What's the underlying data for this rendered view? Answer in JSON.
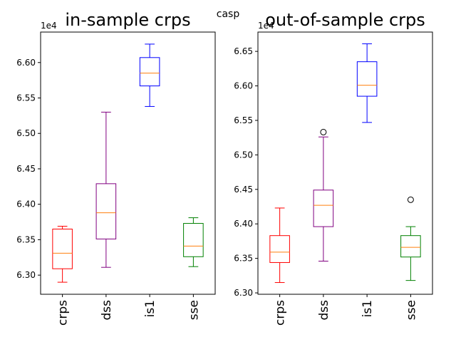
{
  "suptitle": "casp",
  "chart_data": [
    {
      "type": "box",
      "title": "in-sample crps",
      "offset_label": "1e4",
      "categories": [
        "crps",
        "dss",
        "is1",
        "sse"
      ],
      "colors": [
        "#ff0000",
        "#800080",
        "#0000ff",
        "#008000"
      ],
      "median_color": "#ff7f0e",
      "ylim": [
        6.273,
        6.643
      ],
      "yticks": [
        6.3,
        6.35,
        6.4,
        6.45,
        6.5,
        6.55,
        6.6
      ],
      "ytick_labels": [
        "6.30",
        "6.35",
        "6.40",
        "6.45",
        "6.50",
        "6.55",
        "6.60"
      ],
      "boxes": [
        {
          "name": "crps",
          "whislo": 6.29,
          "q1": 6.309,
          "med": 6.331,
          "q3": 6.365,
          "whishi": 6.369,
          "fliers": []
        },
        {
          "name": "dss",
          "whislo": 6.311,
          "q1": 6.351,
          "med": 6.388,
          "q3": 6.429,
          "whishi": 6.53,
          "fliers": []
        },
        {
          "name": "is1",
          "whislo": 6.538,
          "q1": 6.567,
          "med": 6.585,
          "q3": 6.607,
          "whishi": 6.626,
          "fliers": []
        },
        {
          "name": "sse",
          "whislo": 6.312,
          "q1": 6.326,
          "med": 6.341,
          "q3": 6.373,
          "whishi": 6.381,
          "fliers": []
        }
      ]
    },
    {
      "type": "box",
      "title": "out-of-sample crps",
      "offset_label": "1e4",
      "categories": [
        "crps",
        "dss",
        "is1",
        "sse"
      ],
      "colors": [
        "#ff0000",
        "#800080",
        "#0000ff",
        "#008000"
      ],
      "median_color": "#ff7f0e",
      "ylim": [
        6.298,
        6.678
      ],
      "yticks": [
        6.3,
        6.35,
        6.4,
        6.45,
        6.5,
        6.55,
        6.6,
        6.65
      ],
      "ytick_labels": [
        "6.30",
        "6.35",
        "6.40",
        "6.45",
        "6.50",
        "6.55",
        "6.60",
        "6.65"
      ],
      "boxes": [
        {
          "name": "crps",
          "whislo": 6.315,
          "q1": 6.344,
          "med": 6.359,
          "q3": 6.383,
          "whishi": 6.423,
          "fliers": []
        },
        {
          "name": "dss",
          "whislo": 6.346,
          "q1": 6.396,
          "med": 6.427,
          "q3": 6.449,
          "whishi": 6.526,
          "fliers": [
            6.533
          ]
        },
        {
          "name": "is1",
          "whislo": 6.547,
          "q1": 6.585,
          "med": 6.601,
          "q3": 6.635,
          "whishi": 6.661,
          "fliers": []
        },
        {
          "name": "sse",
          "whislo": 6.318,
          "q1": 6.352,
          "med": 6.366,
          "q3": 6.383,
          "whishi": 6.396,
          "fliers": [
            6.435
          ]
        }
      ]
    }
  ]
}
